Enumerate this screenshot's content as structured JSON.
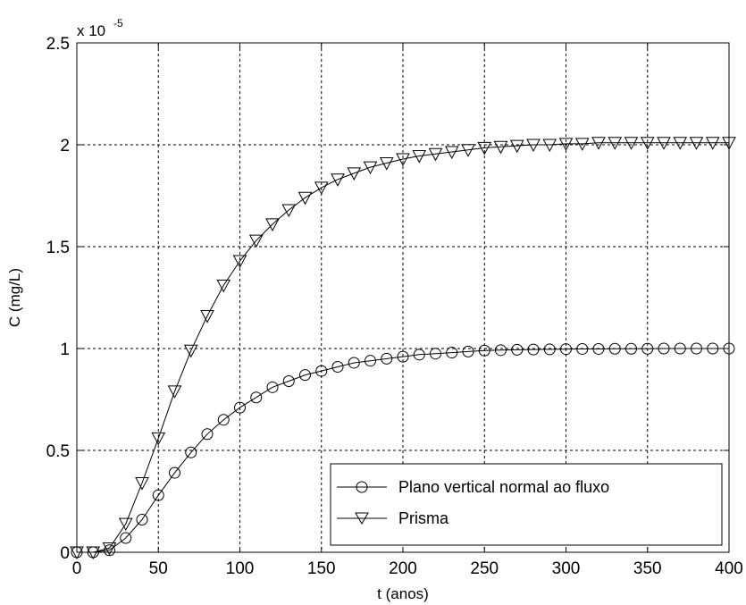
{
  "chart_data": {
    "type": "line",
    "xlabel": "t (anos)",
    "ylabel": "C (mg/L)",
    "xlim": [
      0,
      400
    ],
    "ylim": [
      0,
      2.5
    ],
    "y_multiplier_label": {
      "base": "x 10",
      "exponent": "-5"
    },
    "xticks": [
      "0",
      "50",
      "100",
      "150",
      "200",
      "250",
      "300",
      "350",
      "400"
    ],
    "yticks": [
      "0",
      "0.5",
      "1",
      "1.5",
      "2",
      "2.5"
    ],
    "grid": true,
    "legend_position": "lower-right",
    "x": [
      0,
      10,
      20,
      30,
      40,
      50,
      60,
      70,
      80,
      90,
      100,
      110,
      120,
      130,
      140,
      150,
      160,
      170,
      180,
      190,
      200,
      210,
      220,
      230,
      240,
      250,
      260,
      270,
      280,
      290,
      300,
      310,
      320,
      330,
      340,
      350,
      360,
      370,
      380,
      390,
      400
    ],
    "series": [
      {
        "name": "Plano vertical normal ao fluxo",
        "marker": "circle",
        "color": "#000000",
        "values": [
          0.0,
          0.0,
          0.01,
          0.07,
          0.16,
          0.28,
          0.39,
          0.49,
          0.58,
          0.65,
          0.71,
          0.76,
          0.81,
          0.84,
          0.87,
          0.89,
          0.91,
          0.93,
          0.94,
          0.95,
          0.96,
          0.97,
          0.975,
          0.98,
          0.985,
          0.99,
          0.992,
          0.994,
          0.995,
          0.996,
          0.997,
          0.998,
          0.998,
          0.999,
          0.999,
          0.999,
          1.0,
          1.0,
          1.0,
          1.0,
          1.0
        ]
      },
      {
        "name": "Prisma",
        "marker": "triangle-down",
        "color": "#000000",
        "values": [
          0.0,
          0.0,
          0.02,
          0.14,
          0.34,
          0.56,
          0.79,
          0.99,
          1.16,
          1.31,
          1.43,
          1.53,
          1.61,
          1.68,
          1.74,
          1.79,
          1.83,
          1.86,
          1.89,
          1.91,
          1.93,
          1.945,
          1.955,
          1.965,
          1.975,
          1.985,
          1.99,
          1.995,
          2.0,
          2.0,
          2.005,
          2.005,
          2.01,
          2.01,
          2.01,
          2.01,
          2.01,
          2.01,
          2.01,
          2.01,
          2.01
        ]
      }
    ]
  }
}
